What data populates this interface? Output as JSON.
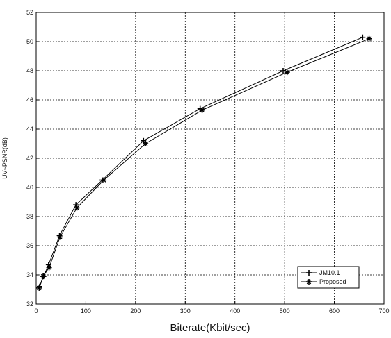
{
  "chart_data": {
    "type": "line",
    "title": "",
    "xlabel": "Biterate(Kbit/sec)",
    "ylabel": "UV~PSNR(dB)",
    "xlim": [
      0,
      700
    ],
    "ylim": [
      32,
      52
    ],
    "x_ticks": [
      0,
      100,
      200,
      300,
      400,
      500,
      600,
      700
    ],
    "y_ticks": [
      32,
      34,
      36,
      38,
      40,
      42,
      44,
      46,
      48,
      50,
      52
    ],
    "grid": true,
    "legend": "bottom-right",
    "series": [
      {
        "name": "JM10.1",
        "color": "#000000",
        "marker": "plus",
        "x": [
          7,
          15,
          25,
          47,
          80,
          133,
          216,
          330,
          497,
          657
        ],
        "y": [
          33.2,
          33.9,
          34.7,
          36.7,
          38.8,
          40.5,
          43.2,
          45.4,
          48.0,
          50.3
        ]
      },
      {
        "name": "Proposed",
        "color": "#000000",
        "marker": "star",
        "x": [
          6,
          14,
          26,
          48,
          82,
          136,
          220,
          334,
          505,
          670
        ],
        "y": [
          33.1,
          33.9,
          34.5,
          36.6,
          38.6,
          40.5,
          43.0,
          45.3,
          47.9,
          50.2
        ]
      }
    ]
  }
}
